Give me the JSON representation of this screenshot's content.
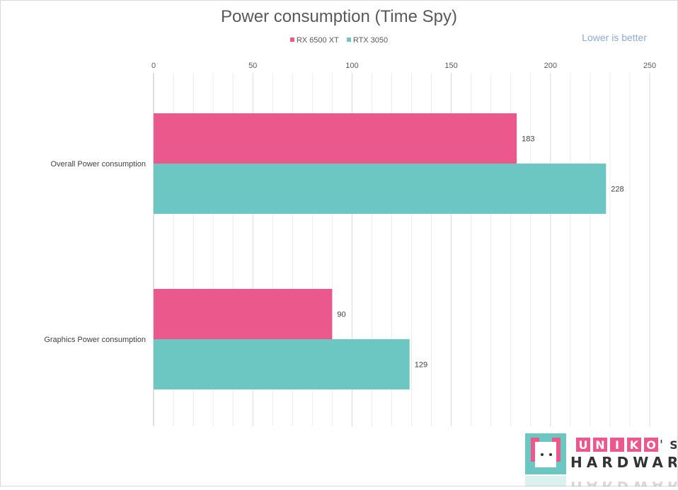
{
  "chart_data": {
    "type": "bar",
    "orientation": "horizontal",
    "title": "Power consumption (Time Spy)",
    "annotation": "Lower is better",
    "categories": [
      "Overall Power consumption",
      "Graphics Power consumption"
    ],
    "series": [
      {
        "name": "RX 6500 XT",
        "color": "#ea588c",
        "values": [
          183,
          90
        ]
      },
      {
        "name": "RTX 3050",
        "color": "#6cc6c1",
        "values": [
          228,
          129
        ]
      }
    ],
    "xlim": [
      0,
      250
    ],
    "xticks": [
      0,
      50,
      100,
      150,
      200,
      250
    ],
    "grid": true,
    "minor_grid": true,
    "legend_position": "top",
    "xaxis_position": "top"
  },
  "watermark": {
    "line1": "UNIKO'S",
    "line2": "HARDWARE",
    "colors": {
      "pink": "#ea588c",
      "teal": "#6cc6c1",
      "dark": "#333333"
    }
  }
}
